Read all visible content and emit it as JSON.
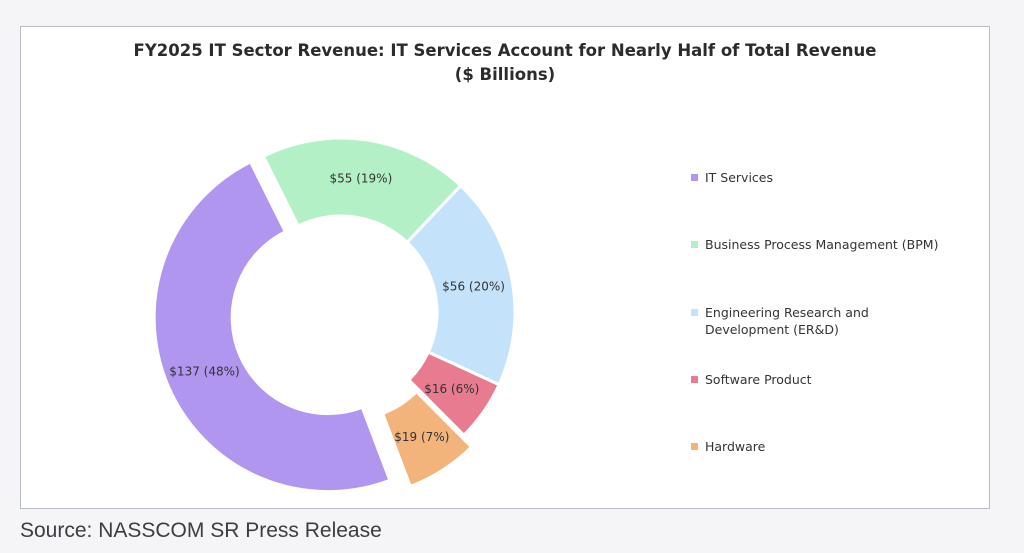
{
  "chart_data": {
    "type": "pie",
    "title_line1": "FY2025 IT Sector Revenue: IT Services Account for Nearly Half of Total Revenue",
    "title_line2": "($ Billions)",
    "categories": [
      "IT Services",
      "Business Process Management (BPM)",
      "Engineering Research and Development (ER&D)",
      "Software Product",
      "Hardware"
    ],
    "legend_lines": [
      [
        "IT Services"
      ],
      [
        "Business Process Management (BPM)"
      ],
      [
        "Engineering Research and",
        "Development (ER&D)"
      ],
      [
        "Software Product"
      ],
      [
        "Hardware"
      ]
    ],
    "values": [
      137,
      55,
      56,
      16,
      19
    ],
    "data_labels": [
      "$137 (48%)",
      "$55 (19%)",
      "$56 (20%)",
      "$16 (6%)",
      "$19 (7%)"
    ],
    "colors": [
      "#b196f0",
      "#b4f0c6",
      "#c4e3fa",
      "#e97b90",
      "#f3b47c"
    ],
    "donut": true,
    "exploded": [
      "IT Services",
      "Hardware"
    ],
    "legend_position": "right",
    "slice_order": "IT Services first, then BPM, ER&D, Software Product, Hardware"
  },
  "source": "Source: NASSCOM SR Press Release"
}
